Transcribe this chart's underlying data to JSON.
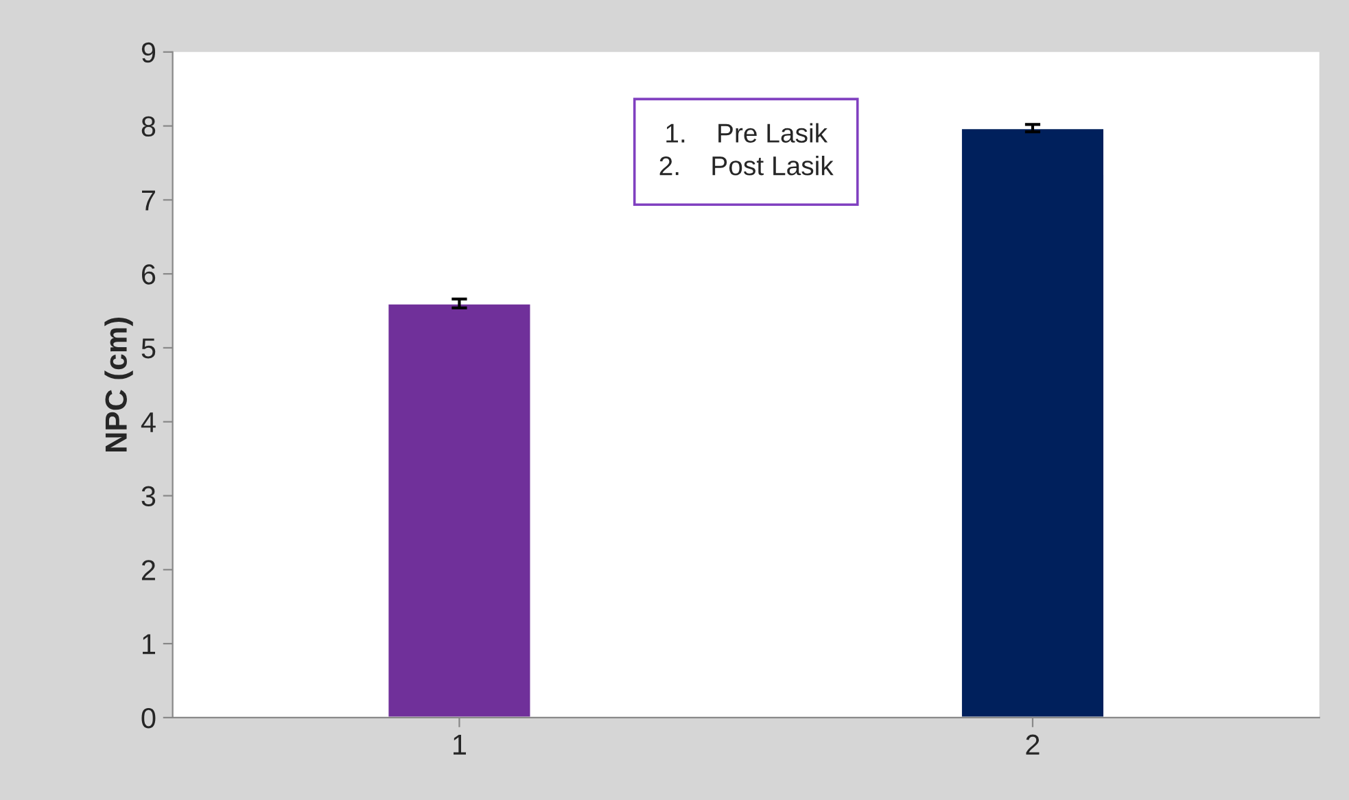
{
  "chart_data": {
    "type": "bar",
    "ylabel": "NPC (cm)",
    "categories": [
      "1",
      "2"
    ],
    "values": [
      5.6,
      7.97
    ],
    "colors": [
      "#70309a",
      "#00205c"
    ],
    "errors": [
      0.06,
      0.05
    ],
    "ylim": [
      0,
      9
    ],
    "yticks": [
      0,
      1,
      2,
      3,
      4,
      5,
      6,
      7,
      8,
      9
    ],
    "grid": false,
    "annotations": [
      "1.    Pre Lasik\n2.    Post Lasik"
    ]
  }
}
